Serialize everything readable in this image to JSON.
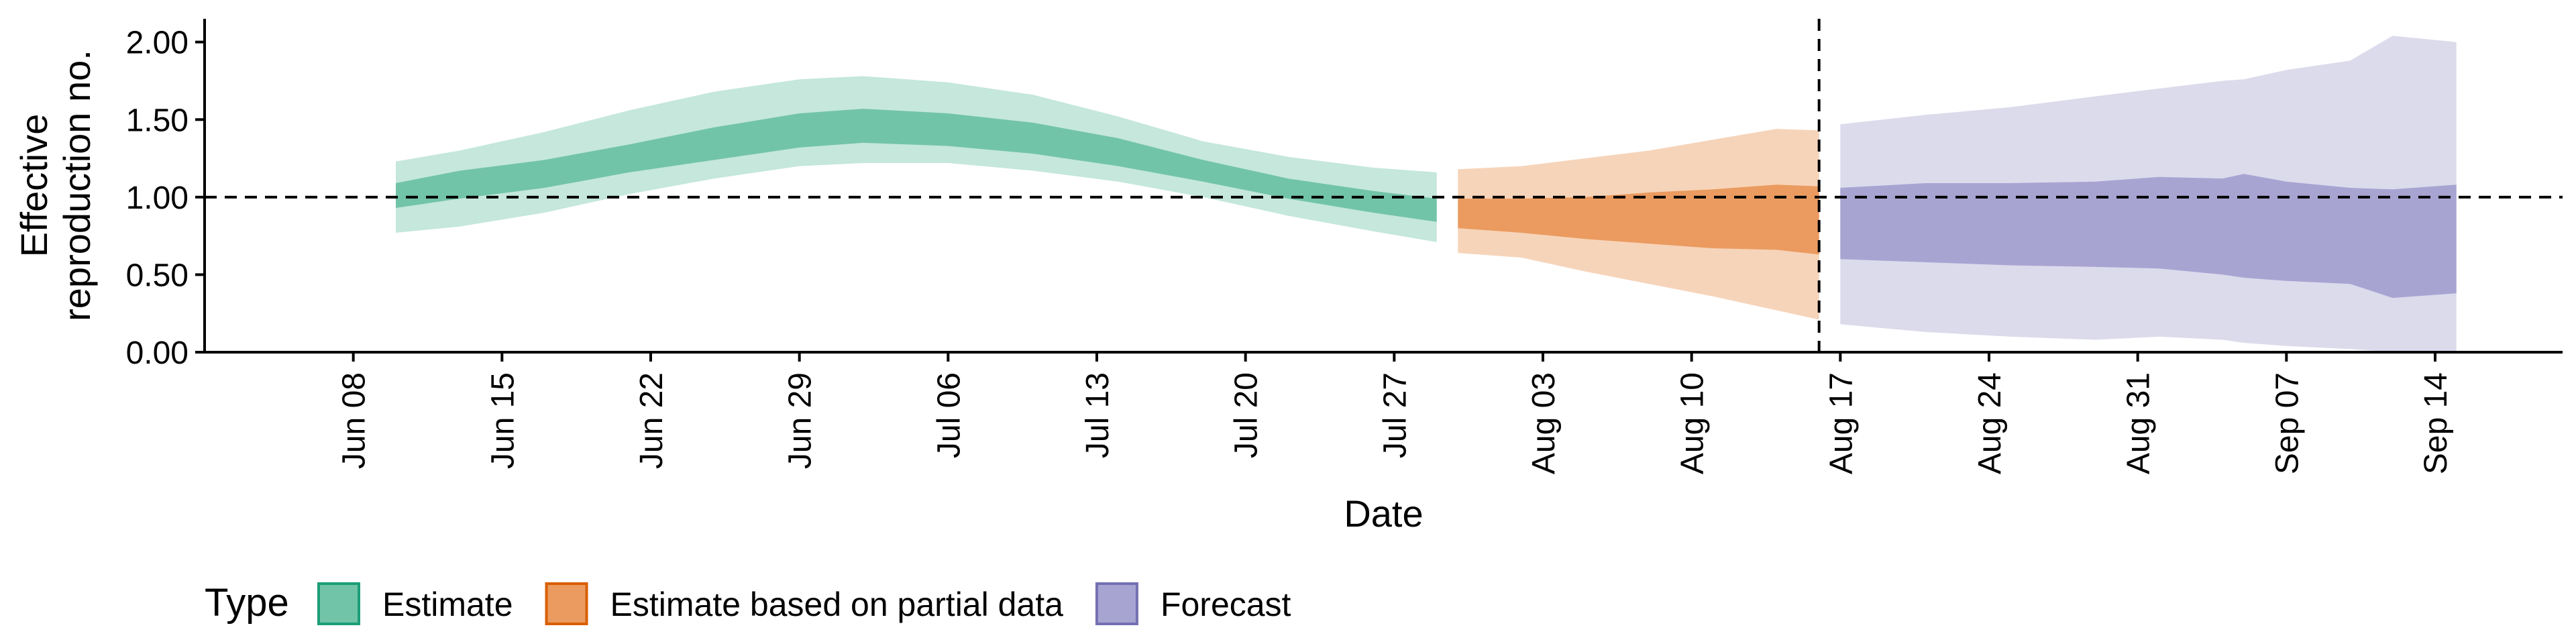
{
  "chart_data": {
    "type": "area",
    "xlabel": "Date",
    "ylabel_lines": [
      "Effective",
      "reproduction no."
    ],
    "ylim": [
      0,
      2.15
    ],
    "y_ticks": [
      "0.00",
      "0.50",
      "1.00",
      "1.50",
      "2.00"
    ],
    "x_ticks": [
      {
        "date": "2020-06-08",
        "label": "Jun 08"
      },
      {
        "date": "2020-06-15",
        "label": "Jun 15"
      },
      {
        "date": "2020-06-22",
        "label": "Jun 22"
      },
      {
        "date": "2020-06-29",
        "label": "Jun 29"
      },
      {
        "date": "2020-07-06",
        "label": "Jul 06"
      },
      {
        "date": "2020-07-13",
        "label": "Jul 13"
      },
      {
        "date": "2020-07-20",
        "label": "Jul 20"
      },
      {
        "date": "2020-07-27",
        "label": "Jul 27"
      },
      {
        "date": "2020-08-03",
        "label": "Aug 03"
      },
      {
        "date": "2020-08-10",
        "label": "Aug 10"
      },
      {
        "date": "2020-08-17",
        "label": "Aug 17"
      },
      {
        "date": "2020-08-24",
        "label": "Aug 24"
      },
      {
        "date": "2020-08-31",
        "label": "Aug 31"
      },
      {
        "date": "2020-09-07",
        "label": "Sep 07"
      },
      {
        "date": "2020-09-14",
        "label": "Sep 14"
      }
    ],
    "xlim": [
      "2020-06-01",
      "2020-09-20"
    ],
    "reference_hline": 1.0,
    "reference_vline": "2020-08-16",
    "legend": {
      "title": "Type",
      "position": "bottom-left",
      "entries": [
        {
          "name": "Estimate",
          "fill": "#72c4a8",
          "border": "#1b9e77"
        },
        {
          "name": "Estimate based on partial data",
          "fill": "#eb9b5f",
          "border": "#d95f02"
        },
        {
          "name": "Forecast",
          "fill": "#a8a4d2",
          "border": "#7570b3"
        }
      ]
    },
    "series": [
      {
        "name": "Estimate",
        "inner_color": "#72c4a8",
        "outer_color": "#c5e7dc",
        "points": [
          {
            "x": "2020-06-10",
            "lo90": 0.77,
            "lo50": 0.93,
            "hi50": 1.09,
            "hi90": 1.23
          },
          {
            "x": "2020-06-13",
            "lo90": 0.81,
            "lo50": 0.99,
            "hi50": 1.17,
            "hi90": 1.3
          },
          {
            "x": "2020-06-17",
            "lo90": 0.9,
            "lo50": 1.06,
            "hi50": 1.24,
            "hi90": 1.42
          },
          {
            "x": "2020-06-21",
            "lo90": 1.02,
            "lo50": 1.16,
            "hi50": 1.34,
            "hi90": 1.56
          },
          {
            "x": "2020-06-25",
            "lo90": 1.12,
            "lo50": 1.24,
            "hi50": 1.45,
            "hi90": 1.68
          },
          {
            "x": "2020-06-29",
            "lo90": 1.2,
            "lo50": 1.32,
            "hi50": 1.54,
            "hi90": 1.76
          },
          {
            "x": "2020-07-02",
            "lo90": 1.22,
            "lo50": 1.35,
            "hi50": 1.57,
            "hi90": 1.78
          },
          {
            "x": "2020-07-06",
            "lo90": 1.22,
            "lo50": 1.33,
            "hi50": 1.54,
            "hi90": 1.74
          },
          {
            "x": "2020-07-10",
            "lo90": 1.17,
            "lo50": 1.28,
            "hi50": 1.48,
            "hi90": 1.66
          },
          {
            "x": "2020-07-14",
            "lo90": 1.1,
            "lo50": 1.2,
            "hi50": 1.38,
            "hi90": 1.52
          },
          {
            "x": "2020-07-18",
            "lo90": 1.0,
            "lo50": 1.1,
            "hi50": 1.24,
            "hi90": 1.36
          },
          {
            "x": "2020-07-22",
            "lo90": 0.88,
            "lo50": 0.99,
            "hi50": 1.12,
            "hi90": 1.26
          },
          {
            "x": "2020-07-26",
            "lo90": 0.78,
            "lo50": 0.9,
            "hi50": 1.04,
            "hi90": 1.19
          },
          {
            "x": "2020-07-29",
            "lo90": 0.71,
            "lo50": 0.84,
            "hi50": 0.99,
            "hi90": 1.16
          }
        ]
      },
      {
        "name": "Estimate based on partial data",
        "inner_color": "#eb9b5f",
        "outer_color": "#f6d4ba",
        "points": [
          {
            "x": "2020-07-30",
            "lo90": 0.64,
            "lo50": 0.8,
            "hi50": 0.99,
            "hi90": 1.18
          },
          {
            "x": "2020-08-02",
            "lo90": 0.61,
            "lo50": 0.77,
            "hi50": 0.99,
            "hi90": 1.2
          },
          {
            "x": "2020-08-05",
            "lo90": 0.52,
            "lo50": 0.73,
            "hi50": 1.0,
            "hi90": 1.25
          },
          {
            "x": "2020-08-08",
            "lo90": 0.44,
            "lo50": 0.7,
            "hi50": 1.03,
            "hi90": 1.3
          },
          {
            "x": "2020-08-11",
            "lo90": 0.36,
            "lo50": 0.67,
            "hi50": 1.05,
            "hi90": 1.37
          },
          {
            "x": "2020-08-14",
            "lo90": 0.27,
            "lo50": 0.66,
            "hi50": 1.08,
            "hi90": 1.44
          },
          {
            "x": "2020-08-16",
            "lo90": 0.21,
            "lo50": 0.63,
            "hi50": 1.07,
            "hi90": 1.43
          }
        ]
      },
      {
        "name": "Forecast",
        "inner_color": "#a8a4d2",
        "outer_color": "#dcdbec",
        "points": [
          {
            "x": "2020-08-17",
            "lo90": 0.18,
            "lo50": 0.6,
            "hi50": 1.06,
            "hi90": 1.47
          },
          {
            "x": "2020-08-21",
            "lo90": 0.13,
            "lo50": 0.58,
            "hi50": 1.09,
            "hi90": 1.53
          },
          {
            "x": "2020-08-25",
            "lo90": 0.1,
            "lo50": 0.56,
            "hi50": 1.09,
            "hi90": 1.58
          },
          {
            "x": "2020-08-29",
            "lo90": 0.08,
            "lo50": 0.55,
            "hi50": 1.1,
            "hi90": 1.65
          },
          {
            "x": "2020-09-01",
            "lo90": 0.1,
            "lo50": 0.54,
            "hi50": 1.13,
            "hi90": 1.7
          },
          {
            "x": "2020-09-04",
            "lo90": 0.08,
            "lo50": 0.5,
            "hi50": 1.12,
            "hi90": 1.75
          },
          {
            "x": "2020-09-05",
            "lo90": 0.06,
            "lo50": 0.48,
            "hi50": 1.15,
            "hi90": 1.76
          },
          {
            "x": "2020-09-07",
            "lo90": 0.04,
            "lo50": 0.46,
            "hi50": 1.1,
            "hi90": 1.82
          },
          {
            "x": "2020-09-10",
            "lo90": 0.02,
            "lo50": 0.44,
            "hi50": 1.06,
            "hi90": 1.88
          },
          {
            "x": "2020-09-12",
            "lo90": 0.0,
            "lo50": 0.35,
            "hi50": 1.05,
            "hi90": 2.04
          },
          {
            "x": "2020-09-15",
            "lo90": 0.0,
            "lo50": 0.38,
            "hi50": 1.08,
            "hi90": 2.0
          }
        ]
      }
    ]
  }
}
